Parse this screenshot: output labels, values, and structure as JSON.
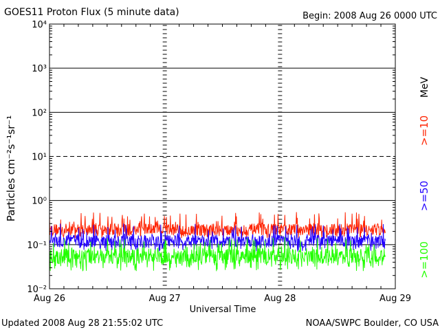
{
  "header": {
    "title": "GOES11 Proton Flux (5 minute data)",
    "begin": "Begin: 2008 Aug 26 0000 UTC"
  },
  "footer": {
    "updated": "Updated 2008 Aug 28 21:55:02 UTC",
    "credit": "NOAA/SWPC Boulder, CO USA"
  },
  "chart_data": {
    "type": "line",
    "title": "GOES11 Proton Flux (5 minute data)",
    "xlabel": "Universal Time",
    "ylabel": "Particles cm⁻²s⁻¹sr⁻¹",
    "y_scale": "log",
    "ylim": [
      0.01,
      10000
    ],
    "xlim": [
      "2008-08-26 00:00",
      "2008-08-29 00:00"
    ],
    "x_ticks": [
      "Aug 26",
      "Aug 27",
      "Aug 28",
      "Aug 29"
    ],
    "y_ticks": [
      "10⁻²",
      "10⁻¹",
      "10⁰",
      "10¹",
      "10²",
      "10³",
      "10⁴"
    ],
    "legend_unit": "MeV",
    "legend_placement": "right",
    "grid": "horizontal lines at each decade; dashed line at 10¹",
    "data_end": "2008-08-28 21:55",
    "series": [
      {
        "name": ">=10",
        "color": "#ff2200",
        "typical": 0.22,
        "low": 0.14,
        "high": 0.55
      },
      {
        "name": ">=50",
        "color": "#2200ff",
        "typical": 0.12,
        "low": 0.07,
        "high": 0.3
      },
      {
        "name": ">=100",
        "color": "#22ff00",
        "typical": 0.055,
        "low": 0.025,
        "high": 0.15
      }
    ]
  }
}
